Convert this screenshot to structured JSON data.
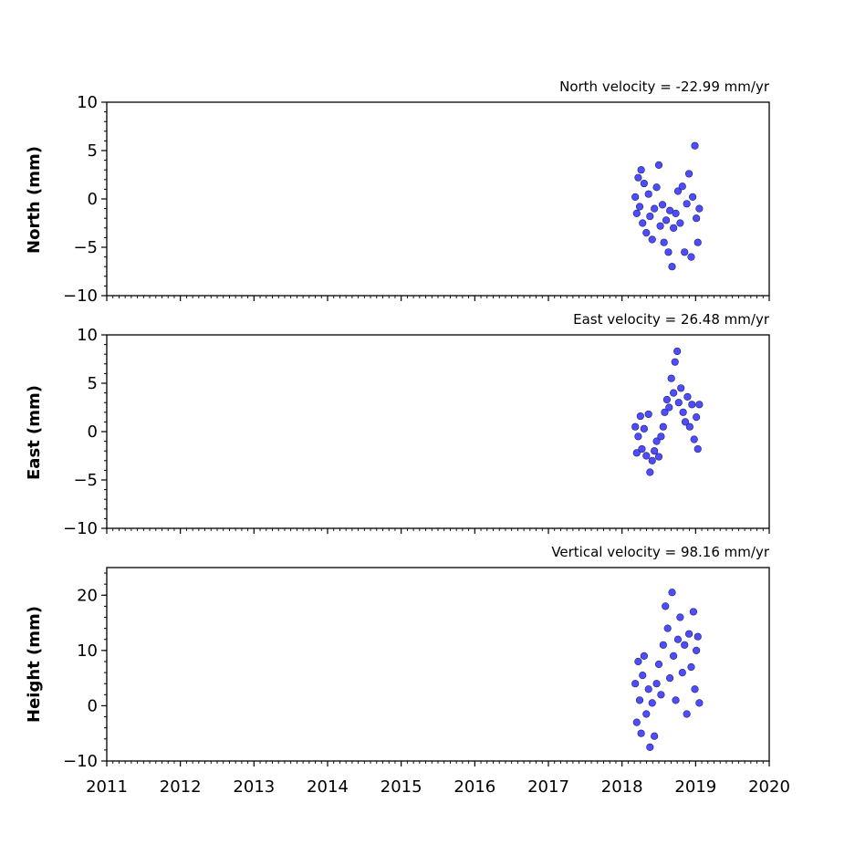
{
  "chart_data": [
    {
      "type": "scatter",
      "title": "North velocity = -22.99 mm/yr",
      "xlabel": "",
      "ylabel": "North (mm)",
      "xlim": [
        2011,
        2020
      ],
      "ylim": [
        -10,
        10
      ],
      "yticks": [
        10,
        5,
        0,
        -5,
        -10
      ],
      "marker_color": "#4d4dff",
      "marker_edge": "#222266",
      "series": [
        {
          "x": [
            2018.18,
            2018.2,
            2018.22,
            2018.24,
            2018.26,
            2018.28,
            2018.3,
            2018.33,
            2018.36,
            2018.38,
            2018.41,
            2018.44,
            2018.47,
            2018.5,
            2018.52,
            2018.55,
            2018.57,
            2018.6,
            2018.63,
            2018.65,
            2018.68,
            2018.7,
            2018.73,
            2018.76,
            2018.79,
            2018.82,
            2018.85,
            2018.88,
            2018.91,
            2018.94,
            2018.96,
            2018.99,
            2019.01,
            2019.03,
            2019.05
          ],
          "y": [
            0.2,
            -1.5,
            2.2,
            -0.8,
            3.0,
            -2.5,
            1.6,
            -3.5,
            0.5,
            -1.8,
            -4.2,
            -1.0,
            1.2,
            3.5,
            -2.8,
            -0.6,
            -4.5,
            -2.2,
            -5.5,
            -1.2,
            -7.0,
            -3.0,
            -1.5,
            0.8,
            -2.5,
            1.3,
            -5.5,
            -0.5,
            2.6,
            -6.0,
            0.2,
            5.5,
            -2.0,
            -4.5,
            -1.0
          ]
        }
      ]
    },
    {
      "type": "scatter",
      "title": "East velocity = 26.48 mm/yr",
      "xlabel": "",
      "ylabel": "East (mm)",
      "xlim": [
        2011,
        2020
      ],
      "ylim": [
        -10,
        10
      ],
      "yticks": [
        10,
        5,
        0,
        -5,
        -10
      ],
      "marker_color": "#4d4dff",
      "marker_edge": "#222266",
      "series": [
        {
          "x": [
            2018.18,
            2018.2,
            2018.22,
            2018.25,
            2018.27,
            2018.3,
            2018.33,
            2018.36,
            2018.38,
            2018.41,
            2018.44,
            2018.47,
            2018.5,
            2018.53,
            2018.56,
            2018.58,
            2018.61,
            2018.64,
            2018.67,
            2018.7,
            2018.72,
            2018.75,
            2018.77,
            2018.8,
            2018.83,
            2018.86,
            2018.89,
            2018.92,
            2018.95,
            2018.98,
            2019.01,
            2019.03,
            2019.05
          ],
          "y": [
            0.5,
            -2.2,
            -0.5,
            1.6,
            -1.8,
            0.3,
            -2.5,
            1.8,
            -4.2,
            -3.0,
            -2.0,
            -1.0,
            -2.6,
            -0.5,
            0.5,
            2.0,
            3.3,
            2.5,
            5.5,
            4.0,
            7.2,
            8.3,
            3.0,
            4.5,
            2.0,
            1.0,
            3.6,
            0.5,
            2.8,
            -0.8,
            1.5,
            -1.8,
            2.8
          ]
        }
      ]
    },
    {
      "type": "scatter",
      "title": "Vertical velocity = 98.16 mm/yr",
      "xlabel": "",
      "ylabel": "Height (mm)",
      "xlim": [
        2011,
        2020
      ],
      "ylim": [
        -10,
        25
      ],
      "yticks": [
        20,
        10,
        0,
        -10
      ],
      "xticks": [
        2011,
        2012,
        2013,
        2014,
        2015,
        2016,
        2017,
        2018,
        2019,
        2020
      ],
      "marker_color": "#4d4dff",
      "marker_edge": "#222266",
      "series": [
        {
          "x": [
            2018.18,
            2018.2,
            2018.22,
            2018.24,
            2018.26,
            2018.28,
            2018.3,
            2018.33,
            2018.36,
            2018.38,
            2018.41,
            2018.44,
            2018.47,
            2018.5,
            2018.53,
            2018.56,
            2018.59,
            2018.62,
            2018.65,
            2018.68,
            2018.7,
            2018.73,
            2018.76,
            2018.79,
            2018.82,
            2018.85,
            2018.88,
            2018.91,
            2018.94,
            2018.97,
            2018.99,
            2019.01,
            2019.03,
            2019.05
          ],
          "y": [
            4.0,
            -3.0,
            8.0,
            1.0,
            -5.0,
            5.5,
            9.0,
            -1.5,
            3.0,
            -7.5,
            0.5,
            -5.5,
            4.0,
            7.5,
            2.0,
            11.0,
            18.0,
            14.0,
            5.0,
            20.5,
            9.0,
            1.0,
            12.0,
            16.0,
            6.0,
            11.0,
            -1.5,
            13.0,
            7.0,
            17.0,
            3.0,
            10.0,
            12.5,
            0.5
          ]
        }
      ]
    }
  ]
}
